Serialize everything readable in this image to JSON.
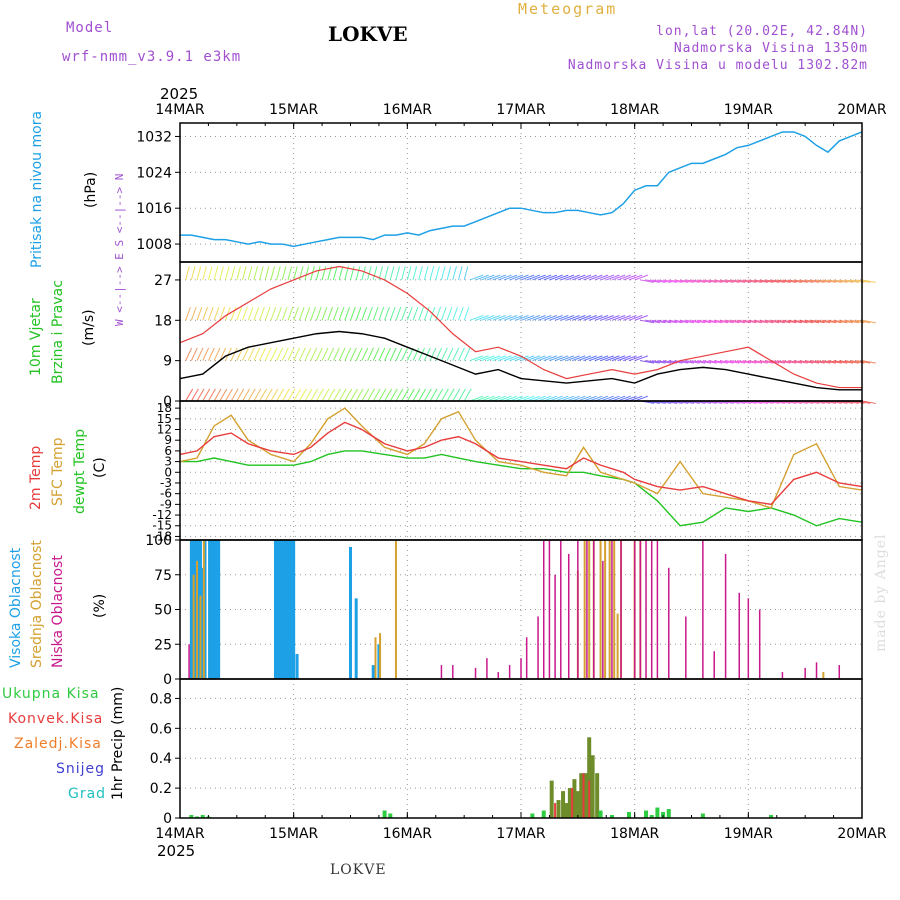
{
  "header": {
    "model_label": "Model",
    "model_name": "wrf-nmm_v3.9.1  e3km",
    "station": "LOKVE",
    "meteogram": "Meteogram",
    "lonlat": "lon,lat (20.02E, 42.84N)",
    "altitude": "Nadmorska Visina 1350m",
    "model_altitude": "Nadmorska Visina u modelu 1302.82m",
    "year_top": "2025",
    "year_bottom": "2025",
    "footer_station": "LOKVE",
    "credit": "made by Angel"
  },
  "colors": {
    "pressure": "#1ea0e6",
    "wind_speed": "#000000",
    "wind_gust": "#e83c3c",
    "temp_2m": "#e83c3c",
    "temp_sfc": "#d4a030",
    "dewpoint": "#22c322",
    "cloud_high": "#1ea0e6",
    "cloud_mid": "#d4a030",
    "cloud_low": "#c8188c",
    "precip_total": "#2ecc40",
    "precip_conv": "#e83c3c",
    "precip_strat": "#f07d28",
    "precip_snow": "#4040d0",
    "precip_hail": "#20c0c0"
  },
  "chart_data": {
    "type": "line",
    "x_ticks": [
      "14MAR",
      "15MAR",
      "16MAR",
      "17MAR",
      "18MAR",
      "19MAR",
      "20MAR"
    ],
    "x_range_days": [
      0,
      6
    ],
    "panels": [
      {
        "id": "pressure",
        "labels": [
          "Pritisak na nivou mora",
          "(hPa)"
        ],
        "ylim": [
          1004,
          1035
        ],
        "yticks": [
          1008,
          1016,
          1024,
          1032
        ],
        "series": [
          {
            "name": "Pritisak",
            "x": [
              0,
              0.1,
              0.2,
              0.3,
              0.4,
              0.5,
              0.6,
              0.7,
              0.8,
              0.9,
              1.0,
              1.1,
              1.2,
              1.3,
              1.4,
              1.5,
              1.6,
              1.7,
              1.8,
              1.9,
              2.0,
              2.1,
              2.2,
              2.3,
              2.4,
              2.5,
              2.6,
              2.7,
              2.8,
              2.9,
              3.0,
              3.1,
              3.2,
              3.3,
              3.4,
              3.5,
              3.6,
              3.7,
              3.8,
              3.9,
              4.0,
              4.1,
              4.2,
              4.3,
              4.4,
              4.5,
              4.6,
              4.7,
              4.8,
              4.9,
              5.0,
              5.1,
              5.2,
              5.3,
              5.4,
              5.5,
              5.6,
              5.7,
              5.8,
              5.9,
              6.0
            ],
            "values": [
              1010,
              1010,
              1009.5,
              1009,
              1009,
              1008.5,
              1008,
              1008.5,
              1008,
              1008,
              1007.5,
              1008,
              1008.5,
              1009,
              1009.5,
              1009.5,
              1009.5,
              1009,
              1010,
              1010,
              1010.5,
              1010,
              1011,
              1011.5,
              1012,
              1012,
              1013,
              1014,
              1015,
              1016,
              1016,
              1015.5,
              1015,
              1015,
              1015.5,
              1015.5,
              1015,
              1014.5,
              1015,
              1017,
              1020,
              1021,
              1021,
              1024,
              1025,
              1026,
              1026,
              1027,
              1028,
              1029.5,
              1030,
              1031,
              1032,
              1033,
              1033,
              1032,
              1030,
              1028.5,
              1031,
              1032,
              1033
            ]
          }
        ]
      },
      {
        "id": "wind",
        "labels": [
          "10m Vjetar",
          "Brzina i Pravac",
          "(m/s)"
        ],
        "direction_key": "W <--|--> E   S <--|--> N",
        "ylim": [
          0,
          31
        ],
        "yticks": [
          0,
          9,
          18,
          27
        ],
        "series": [
          {
            "name": "Brzina",
            "x": [
              0,
              0.2,
              0.4,
              0.6,
              0.8,
              1.0,
              1.2,
              1.4,
              1.6,
              1.8,
              2.0,
              2.2,
              2.4,
              2.6,
              2.8,
              3.0,
              3.2,
              3.4,
              3.6,
              3.8,
              4.0,
              4.2,
              4.4,
              4.6,
              4.8,
              5.0,
              5.2,
              5.4,
              5.6,
              5.8,
              6.0
            ],
            "values": [
              5,
              6,
              10,
              12,
              13,
              14,
              15,
              15.5,
              15,
              14,
              12,
              10,
              8,
              6,
              7,
              5,
              4.5,
              4,
              4.5,
              5,
              4,
              6,
              7,
              7.5,
              7,
              6,
              5,
              4,
              3,
              2.5,
              2.5
            ]
          },
          {
            "name": "Udari",
            "x": [
              0,
              0.2,
              0.4,
              0.6,
              0.8,
              1.0,
              1.2,
              1.4,
              1.6,
              1.8,
              2.0,
              2.2,
              2.4,
              2.6,
              2.8,
              3.0,
              3.2,
              3.4,
              3.6,
              3.8,
              4.0,
              4.2,
              4.4,
              4.6,
              4.8,
              5.0,
              5.2,
              5.4,
              5.6,
              5.8,
              6.0
            ],
            "values": [
              13,
              15,
              19,
              22,
              25,
              27,
              29,
              30,
              29,
              27,
              24,
              20,
              15,
              11,
              12,
              10,
              7,
              5,
              6,
              7,
              6,
              7,
              9,
              10,
              11,
              12,
              9,
              6,
              4,
              3,
              3
            ]
          }
        ]
      },
      {
        "id": "temperature",
        "labels": [
          "2m Temp",
          "SFC Temp",
          "dewpt Temp",
          "(C)"
        ],
        "ylim": [
          -19,
          20
        ],
        "ytick_labels": [
          "18",
          "15",
          "12",
          "9",
          "6",
          "3",
          "0",
          "-3",
          "-6",
          "-9",
          "-12",
          "-15",
          "-18"
        ],
        "series": [
          {
            "name": "2m Temp",
            "x": [
              0,
              0.15,
              0.3,
              0.45,
              0.6,
              0.8,
              1.0,
              1.15,
              1.3,
              1.45,
              1.6,
              1.8,
              2.0,
              2.15,
              2.3,
              2.45,
              2.6,
              2.8,
              3.0,
              3.2,
              3.4,
              3.55,
              3.7,
              3.9,
              4.0,
              4.2,
              4.4,
              4.6,
              4.8,
              5.0,
              5.2,
              5.4,
              5.6,
              5.8,
              6.0
            ],
            "values": [
              5,
              6,
              10,
              11,
              8,
              6,
              5,
              7,
              11,
              14,
              12,
              8,
              6,
              7,
              9,
              10,
              8,
              4,
              3,
              2,
              1,
              4,
              2,
              0,
              -2,
              -4,
              -5,
              -4,
              -6,
              -8,
              -9,
              -2,
              0,
              -3,
              -4
            ]
          },
          {
            "name": "SFC Temp",
            "x": [
              0,
              0.15,
              0.3,
              0.45,
              0.6,
              0.8,
              1.0,
              1.15,
              1.3,
              1.45,
              1.6,
              1.8,
              2.0,
              2.15,
              2.3,
              2.45,
              2.6,
              2.8,
              3.0,
              3.2,
              3.4,
              3.55,
              3.7,
              3.9,
              4.0,
              4.2,
              4.4,
              4.6,
              4.8,
              5.0,
              5.2,
              5.4,
              5.6,
              5.8,
              6.0
            ],
            "values": [
              3,
              4,
              13,
              16,
              9,
              5,
              3,
              8,
              15,
              18,
              13,
              7,
              5,
              8,
              15,
              17,
              9,
              3,
              2,
              0,
              -1,
              7,
              0,
              -2,
              -3,
              -6,
              3,
              -6,
              -7,
              -8,
              -10,
              5,
              8,
              -4,
              -5
            ]
          },
          {
            "name": "dewpt Temp",
            "x": [
              0,
              0.15,
              0.3,
              0.45,
              0.6,
              0.8,
              1.0,
              1.15,
              1.3,
              1.45,
              1.6,
              1.8,
              2.0,
              2.15,
              2.3,
              2.45,
              2.6,
              2.8,
              3.0,
              3.2,
              3.4,
              3.55,
              3.7,
              3.9,
              4.0,
              4.2,
              4.4,
              4.6,
              4.8,
              5.0,
              5.2,
              5.4,
              5.6,
              5.8,
              6.0
            ],
            "values": [
              3,
              3,
              4,
              3,
              2,
              2,
              2,
              3,
              5,
              6,
              6,
              5,
              4,
              4,
              5,
              4,
              3,
              2,
              1,
              1,
              0,
              0,
              -1,
              -2,
              -3,
              -8,
              -15,
              -14,
              -10,
              -11,
              -10,
              -12,
              -15,
              -13,
              -14
            ]
          }
        ]
      },
      {
        "id": "clouds",
        "labels": [
          "Visoka Oblacnost",
          "Srednja Oblacnost",
          "Niska Oblacnost",
          "(%)"
        ],
        "ylim": [
          0,
          100
        ],
        "yticks": [
          0,
          25,
          50,
          75,
          100
        ],
        "series": [
          {
            "name": "Visoka Oblacnost",
            "x": [
              0.1,
              0.12,
              0.14,
              0.16,
              0.18,
              0.2,
              0.22,
              0.26,
              0.28,
              0.3,
              0.32,
              0.34,
              0.84,
              0.86,
              0.88,
              0.9,
              0.92,
              0.94,
              0.96,
              0.98,
              1.0,
              1.03,
              1.5,
              1.55,
              1.7,
              1.75
            ],
            "values": [
              100,
              100,
              100,
              100,
              100,
              80,
              100,
              100,
              100,
              100,
              100,
              100,
              100,
              100,
              100,
              100,
              100,
              100,
              100,
              100,
              100,
              18,
              95,
              58,
              10,
              25
            ]
          },
          {
            "name": "Srednja Oblacnost",
            "x": [
              0.12,
              0.15,
              0.18,
              0.21,
              1.72,
              1.76,
              1.9,
              3.5,
              3.56,
              3.6,
              3.64,
              3.7,
              3.74,
              3.78,
              3.82,
              3.85,
              3.88,
              4.0,
              4.05,
              5.66
            ],
            "values": [
              75,
              85,
              60,
              100,
              30,
              33,
              100,
              78,
              100,
              100,
              100,
              100,
              100,
              100,
              100,
              47,
              100,
              100,
              100,
              5
            ]
          },
          {
            "name": "Niska Oblacnost",
            "x": [
              0.08,
              2.3,
              2.4,
              2.6,
              2.7,
              2.8,
              2.9,
              3.0,
              3.05,
              3.15,
              3.2,
              3.25,
              3.3,
              3.35,
              3.42,
              3.5,
              3.58,
              3.64,
              3.72,
              3.8,
              3.88,
              4.0,
              4.05,
              4.1,
              4.15,
              4.2,
              4.3,
              4.45,
              4.6,
              4.7,
              4.8,
              4.92,
              5.0,
              5.1,
              5.3,
              5.5,
              5.6,
              5.8
            ],
            "values": [
              25,
              10,
              10,
              8,
              15,
              5,
              10,
              15,
              30,
              45,
              100,
              100,
              75,
              100,
              90,
              100,
              100,
              100,
              85,
              100,
              100,
              100,
              100,
              100,
              100,
              100,
              80,
              45,
              100,
              20,
              90,
              62,
              58,
              50,
              5,
              8,
              12,
              10
            ]
          }
        ]
      },
      {
        "id": "precip",
        "labels": [
          "1hr Precip (mm)"
        ],
        "legend": [
          "Ukupna Kisa",
          "Konvek.Kisa",
          "Zaledj.Kisa",
          "Snijeg",
          "Grad"
        ],
        "ylim": [
          0,
          0.93
        ],
        "yticks": [
          0,
          0.2,
          0.4,
          0.6,
          0.8
        ],
        "series": [
          {
            "name": "Ukupna Kisa",
            "x": [
              0.1,
              0.15,
              0.2,
              0.25,
              1.8,
              1.85,
              3.1,
              3.2,
              3.27,
              3.33,
              3.37,
              3.4,
              3.43,
              3.47,
              3.5,
              3.53,
              3.57,
              3.6,
              3.63,
              3.67,
              3.7,
              3.8,
              3.95,
              4.1,
              4.15,
              4.2,
              4.25,
              4.3,
              4.6,
              5.2
            ],
            "values": [
              0.02,
              0.01,
              0.02,
              0.01,
              0.05,
              0.03,
              0.03,
              0.05,
              0.25,
              0.12,
              0.18,
              0.1,
              0.2,
              0.26,
              0.18,
              0.3,
              0.3,
              0.54,
              0.42,
              0.3,
              0.05,
              0.02,
              0.04,
              0.05,
              0.02,
              0.07,
              0.04,
              0.06,
              0.03,
              0.02
            ]
          },
          {
            "name": "Konvek.Kisa",
            "x": [
              3.3,
              3.45,
              3.55,
              3.6
            ],
            "values": [
              0.1,
              0.2,
              0.3,
              0.25
            ]
          }
        ]
      }
    ]
  }
}
